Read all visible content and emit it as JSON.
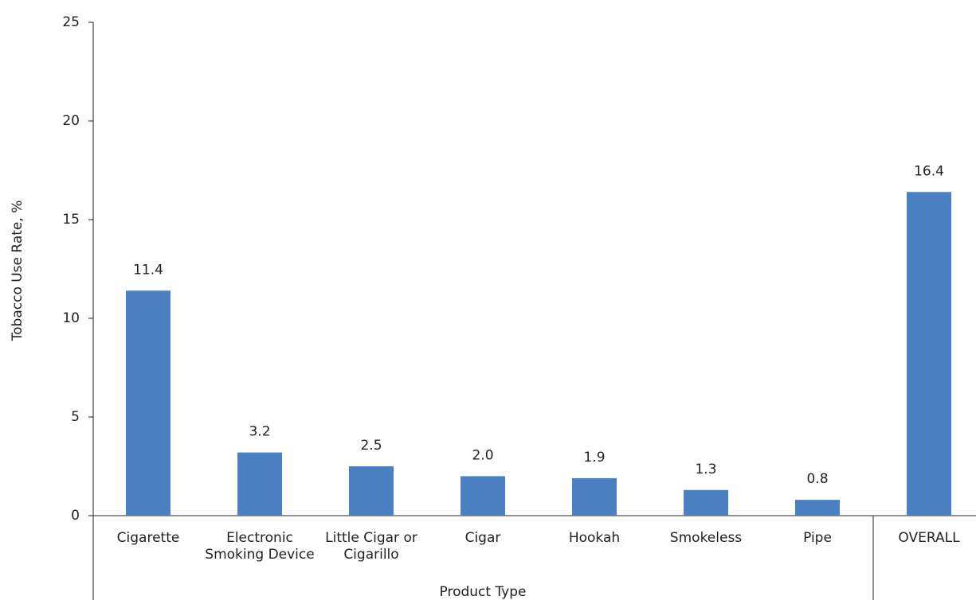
{
  "chart_data": {
    "type": "bar",
    "y_label": "Tobacco Use Rate, %",
    "x_label": "Product Type",
    "categories": [
      "Cigarette",
      "Electronic\nSmoking Device",
      "Little Cigar or\nCigarillo",
      "Cigar",
      "Hookah",
      "Smokeless",
      "Pipe",
      "OVERALL"
    ],
    "values": [
      11.4,
      3.2,
      2.5,
      2.0,
      1.9,
      1.3,
      0.8,
      16.4
    ],
    "value_labels": [
      "11.4",
      "3.2",
      "2.5",
      "2.0",
      "1.9",
      "1.3",
      "0.8",
      "16.4"
    ],
    "color": "#4a7fc1",
    "ylim": [
      0,
      25
    ],
    "yticks": [
      0,
      5,
      10,
      15,
      20,
      25
    ],
    "grid": false
  }
}
